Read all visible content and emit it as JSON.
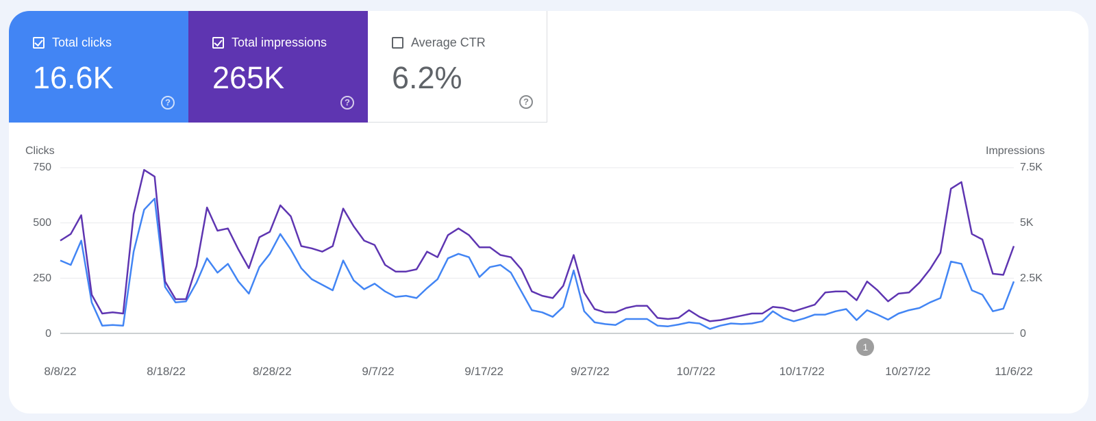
{
  "tiles": {
    "clicks": {
      "label": "Total clicks",
      "value": "16.6K",
      "checked": true,
      "color": "#4285f4"
    },
    "impressions": {
      "label": "Total impressions",
      "value": "265K",
      "checked": true,
      "color": "#5e35b1"
    },
    "ctr": {
      "label": "Average CTR",
      "value": "6.2%",
      "checked": false
    }
  },
  "help_glyph": "?",
  "chart_data": {
    "type": "line",
    "ylabel_left": "Clicks",
    "ylabel_right": "Impressions",
    "yticks_left": [
      "750",
      "500",
      "250",
      "0"
    ],
    "yticks_right": [
      "7.5K",
      "5K",
      "2.5K",
      "0"
    ],
    "ylim_left": [
      0,
      750
    ],
    "ylim_right": [
      0,
      7500
    ],
    "x_start": "2022-08-08",
    "x_end": "2022-11-06",
    "xtick_labels": [
      "8/8/22",
      "8/18/22",
      "8/28/22",
      "9/7/22",
      "9/17/22",
      "9/27/22",
      "10/7/22",
      "10/17/22",
      "10/27/22",
      "11/6/22"
    ],
    "grid": true,
    "annotation": {
      "label": "1",
      "date": "2022-10-23"
    },
    "series": [
      {
        "name": "Clicks",
        "axis": "left",
        "color": "#4285f4",
        "values": [
          330,
          310,
          420,
          140,
          35,
          38,
          35,
          370,
          560,
          610,
          210,
          140,
          145,
          230,
          340,
          275,
          315,
          235,
          180,
          300,
          360,
          450,
          380,
          295,
          245,
          220,
          195,
          330,
          240,
          200,
          225,
          190,
          165,
          170,
          160,
          205,
          245,
          340,
          360,
          345,
          255,
          300,
          310,
          275,
          190,
          105,
          95,
          75,
          120,
          285,
          100,
          50,
          42,
          38,
          65,
          65,
          65,
          35,
          32,
          40,
          50,
          45,
          20,
          35,
          45,
          42,
          45,
          55,
          100,
          70,
          55,
          68,
          85,
          85,
          100,
          110,
          60,
          105,
          85,
          62,
          90,
          105,
          115,
          140,
          160,
          325,
          315,
          195,
          175,
          100,
          112,
          235
        ]
      },
      {
        "name": "Impressions",
        "axis": "right",
        "color": "#5e35b1",
        "values": [
          4200,
          4500,
          5350,
          1750,
          900,
          950,
          900,
          5400,
          7400,
          7100,
          2350,
          1550,
          1550,
          3050,
          5700,
          4650,
          4750,
          3800,
          2950,
          4350,
          4600,
          5800,
          5300,
          3950,
          3850,
          3700,
          3950,
          5650,
          4850,
          4200,
          4000,
          3100,
          2800,
          2800,
          2900,
          3700,
          3450,
          4450,
          4750,
          4450,
          3900,
          3900,
          3550,
          3450,
          2900,
          1900,
          1700,
          1600,
          2150,
          3550,
          1850,
          1100,
          950,
          950,
          1150,
          1250,
          1250,
          700,
          650,
          700,
          1050,
          750,
          550,
          600,
          700,
          800,
          900,
          900,
          1200,
          1150,
          1000,
          1150,
          1300,
          1850,
          1900,
          1900,
          1500,
          2350,
          1950,
          1450,
          1800,
          1850,
          2300,
          2900,
          3650,
          6550,
          6850,
          4500,
          4250,
          2700,
          2650,
          3950
        ]
      }
    ]
  }
}
